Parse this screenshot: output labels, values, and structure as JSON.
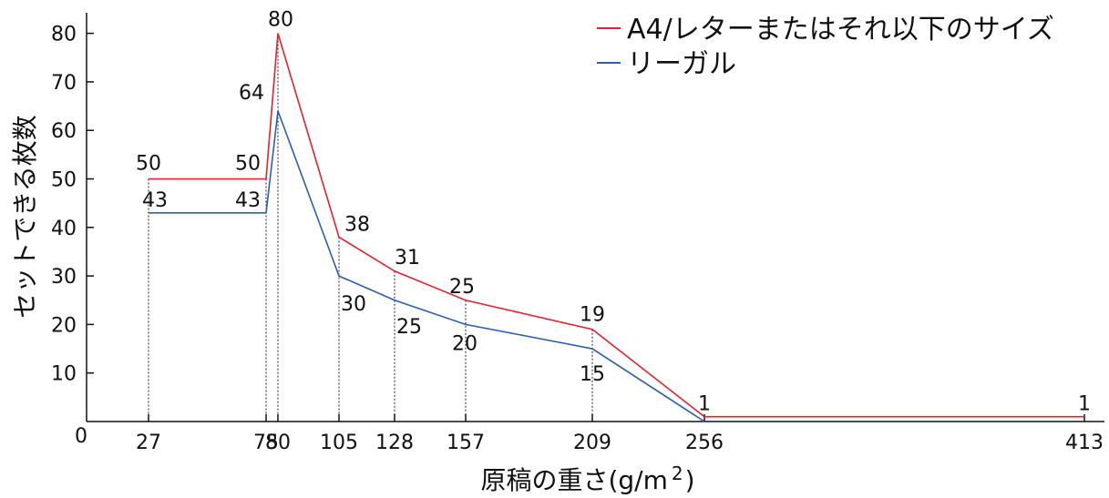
{
  "chart_data": {
    "type": "line",
    "xlabel": "原稿の重さ(g/m",
    "xlabel_superscript": "2",
    "xlabel_close": ")",
    "ylabel": "セットできる枚数",
    "origin_label": "0",
    "x": [
      27,
      75,
      80,
      105,
      128,
      157,
      209,
      256,
      413
    ],
    "x_tick_labels": [
      "27",
      "75",
      "80",
      "105",
      "128",
      "157",
      "209",
      "256",
      "413"
    ],
    "y_ticks": [
      10,
      20,
      30,
      40,
      50,
      60,
      70,
      80
    ],
    "y_tick_labels": [
      "10",
      "20",
      "30",
      "40",
      "50",
      "60",
      "70",
      "80"
    ],
    "ylim": [
      0,
      84
    ],
    "grid": false,
    "legend_position": "top-right",
    "series": [
      {
        "name": "A4/レターまたはそれ以下のサイズ",
        "color": "#e8202a",
        "points": [
          [
            27,
            50
          ],
          [
            75,
            50
          ],
          [
            80,
            80
          ],
          [
            105,
            38
          ],
          [
            128,
            31
          ],
          [
            157,
            25
          ],
          [
            209,
            19
          ],
          [
            256,
            1
          ],
          [
            413,
            1
          ]
        ],
        "labels": [
          [
            "27",
            "50"
          ],
          [
            "75",
            "50"
          ],
          [
            "80",
            "80"
          ],
          [
            "105",
            "38"
          ],
          [
            "128",
            "31"
          ],
          [
            "157",
            "25"
          ],
          [
            "209",
            "19"
          ],
          [
            "256",
            "1"
          ],
          [
            "413",
            "1"
          ]
        ]
      },
      {
        "name": "リーガル",
        "color": "#2b5fb0",
        "points": [
          [
            27,
            43
          ],
          [
            75,
            43
          ],
          [
            80,
            64
          ],
          [
            105,
            30
          ],
          [
            128,
            25
          ],
          [
            157,
            20
          ],
          [
            209,
            15
          ],
          [
            256,
            0
          ]
        ],
        "labels": [
          [
            "27",
            "43"
          ],
          [
            "75",
            "43"
          ],
          [
            "80",
            "64"
          ],
          [
            "105",
            "30"
          ],
          [
            "128",
            "25"
          ],
          [
            "157",
            "20"
          ],
          [
            "209",
            "15"
          ]
        ]
      }
    ]
  }
}
